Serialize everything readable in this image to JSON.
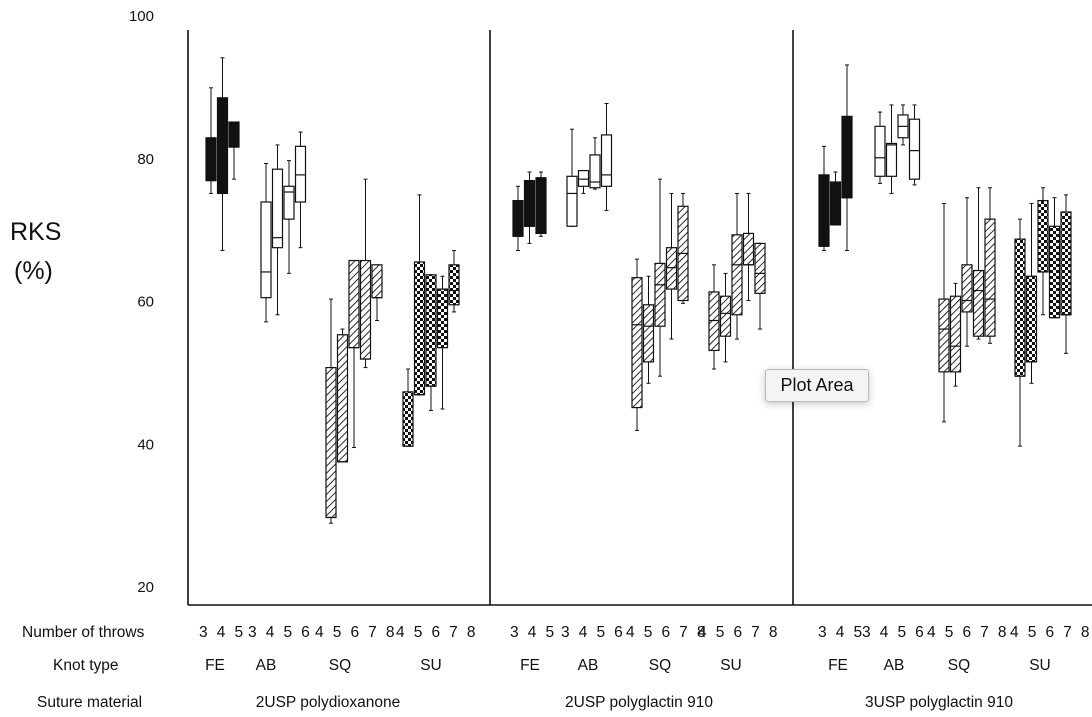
{
  "chart_data": {
    "type": "box",
    "ylabel_line1": "RKS",
    "ylabel_line2": "(%)",
    "ylim": [
      20,
      100
    ],
    "yticks": [
      20,
      40,
      60,
      80,
      100
    ],
    "row_labels": {
      "throws": "Number of throws",
      "knot": "Knot type",
      "material": "Suture material"
    },
    "panels": [
      {
        "material": "2USP polydioxanone",
        "groups": [
          {
            "knot": "FE",
            "throws_label": "345",
            "pattern": "solid",
            "boxes": [
              {
                "throws": 3,
                "min": 75,
                "q1": 76.8,
                "median": 76.8,
                "q3": 82.8,
                "max": 89.8
              },
              {
                "throws": 4,
                "min": 67,
                "q1": 75,
                "median": 75,
                "q3": 88.4,
                "max": 94
              },
              {
                "throws": 5,
                "min": 77,
                "q1": 81.5,
                "median": 81.5,
                "q3": 85,
                "max": 85
              }
            ]
          },
          {
            "knot": "AB",
            "throws_label": "3456",
            "pattern": "open",
            "boxes": [
              {
                "throws": 3,
                "min": 57,
                "q1": 60.4,
                "median": 64,
                "q3": 73.8,
                "max": 79.2
              },
              {
                "throws": 4,
                "min": 58,
                "q1": 67.4,
                "median": 68.8,
                "q3": 78.4,
                "max": 81.8
              },
              {
                "throws": 5,
                "min": 63.8,
                "q1": 71.4,
                "median": 75.2,
                "q3": 76,
                "max": 79.6
              },
              {
                "throws": 6,
                "min": 67.4,
                "q1": 73.8,
                "median": 77.6,
                "q3": 81.6,
                "max": 83.6
              }
            ]
          },
          {
            "knot": "SQ",
            "throws_label": "45678",
            "pattern": "hatch",
            "boxes": [
              {
                "throws": 4,
                "min": 28.8,
                "q1": 29.6,
                "median": 29.6,
                "q3": 50.6,
                "max": 60.2
              },
              {
                "throws": 5,
                "min": 37.4,
                "q1": 37.4,
                "median": 37.4,
                "q3": 55.2,
                "max": 56
              },
              {
                "throws": 6,
                "min": 39.4,
                "q1": 53.4,
                "median": 53.4,
                "q3": 65.6,
                "max": 65.6
              },
              {
                "throws": 7,
                "min": 50.6,
                "q1": 51.8,
                "median": 51.8,
                "q3": 65.6,
                "max": 77
              },
              {
                "throws": 8,
                "min": 57.2,
                "q1": 60.4,
                "median": 60.4,
                "q3": 65,
                "max": 65
              }
            ]
          },
          {
            "knot": "SU",
            "throws_label": "45678",
            "pattern": "check",
            "boxes": [
              {
                "throws": 4,
                "min": 39.6,
                "q1": 39.6,
                "median": 39.6,
                "q3": 47.2,
                "max": 50.4
              },
              {
                "throws": 5,
                "min": 46.8,
                "q1": 46.8,
                "median": 46.8,
                "q3": 65.4,
                "max": 74.8
              },
              {
                "throws": 6,
                "min": 44.6,
                "q1": 48,
                "median": 48,
                "q3": 63.6,
                "max": 63.6
              },
              {
                "throws": 7,
                "min": 44.8,
                "q1": 53.4,
                "median": 53.4,
                "q3": 61.6,
                "max": 63.4
              },
              {
                "throws": 8,
                "min": 58.4,
                "q1": 59.4,
                "median": 61.4,
                "q3": 65,
                "max": 67
              }
            ]
          }
        ]
      },
      {
        "material": "2USP polyglactin 910",
        "groups": [
          {
            "knot": "FE",
            "throws_label": "345",
            "pattern": "solid",
            "boxes": [
              {
                "throws": 3,
                "min": 67,
                "q1": 69,
                "median": 69,
                "q3": 74,
                "max": 76
              },
              {
                "throws": 4,
                "min": 68,
                "q1": 70.4,
                "median": 70.4,
                "q3": 76.8,
                "max": 78
              },
              {
                "throws": 5,
                "min": 69,
                "q1": 69.4,
                "median": 69.4,
                "q3": 77.2,
                "max": 78
              }
            ]
          },
          {
            "knot": "AB",
            "throws_label": "3456",
            "pattern": "open",
            "boxes": [
              {
                "throws": 3,
                "min": 70.4,
                "q1": 70.4,
                "median": 75,
                "q3": 77.4,
                "max": 84
              },
              {
                "throws": 4,
                "min": 75,
                "q1": 76,
                "median": 77,
                "q3": 78.2,
                "max": 78.2
              },
              {
                "throws": 5,
                "min": 75.6,
                "q1": 75.8,
                "median": 76.6,
                "q3": 80.4,
                "max": 82.8
              },
              {
                "throws": 6,
                "min": 72.6,
                "q1": 76,
                "median": 77.6,
                "q3": 83.2,
                "max": 87.6
              }
            ]
          },
          {
            "knot": "SQ",
            "throws_label": "45678",
            "pattern": "hatch",
            "boxes": [
              {
                "throws": 4,
                "min": 41.8,
                "q1": 45,
                "median": 56.6,
                "q3": 63.2,
                "max": 65.8
              },
              {
                "throws": 5,
                "min": 48.4,
                "q1": 51.4,
                "median": 56.4,
                "q3": 59.4,
                "max": 63.4
              },
              {
                "throws": 6,
                "min": 49.4,
                "q1": 56.4,
                "median": 62.2,
                "q3": 65.2,
                "max": 77
              },
              {
                "throws": 7,
                "min": 54.6,
                "q1": 61.6,
                "median": 64.6,
                "q3": 67.4,
                "max": 75
              },
              {
                "throws": 8,
                "min": 59.6,
                "q1": 60,
                "median": 66.6,
                "q3": 73.2,
                "max": 75
              }
            ]
          },
          {
            "knot": "SU",
            "throws_label": "45678",
            "pattern": "hatch",
            "boxes": [
              {
                "throws": 4,
                "min": 50.4,
                "q1": 53,
                "median": 57.2,
                "q3": 61.2,
                "max": 65
              },
              {
                "throws": 5,
                "min": 51.4,
                "q1": 55,
                "median": 58.2,
                "q3": 60.6,
                "max": 63.8
              },
              {
                "throws": 6,
                "min": 54.6,
                "q1": 58,
                "median": 65,
                "q3": 69.2,
                "max": 75
              },
              {
                "throws": 7,
                "min": 60,
                "q1": 65,
                "median": 65,
                "q3": 69.4,
                "max": 75
              },
              {
                "throws": 8,
                "min": 56,
                "q1": 61,
                "median": 63.8,
                "q3": 68,
                "max": 68
              }
            ]
          }
        ]
      },
      {
        "material": "3USP polyglactin 910",
        "groups": [
          {
            "knot": "FE",
            "throws_label": "345",
            "pattern": "solid",
            "boxes": [
              {
                "throws": 3,
                "min": 67,
                "q1": 67.6,
                "median": 67.6,
                "q3": 77.6,
                "max": 81.6
              },
              {
                "throws": 4,
                "min": 70.6,
                "q1": 70.6,
                "median": 70.6,
                "q3": 76.6,
                "max": 78
              },
              {
                "throws": 5,
                "min": 67,
                "q1": 74.4,
                "median": 74.4,
                "q3": 85.8,
                "max": 93
              }
            ]
          },
          {
            "knot": "AB",
            "throws_label": "3456",
            "pattern": "open",
            "boxes": [
              {
                "throws": 3,
                "min": 76.4,
                "q1": 77.4,
                "median": 80,
                "q3": 84.4,
                "max": 86.4
              },
              {
                "throws": 4,
                "min": 75,
                "q1": 77.4,
                "median": 81.8,
                "q3": 82,
                "max": 87.4
              },
              {
                "throws": 5,
                "min": 81.8,
                "q1": 82.8,
                "median": 84.4,
                "q3": 86,
                "max": 87.4
              },
              {
                "throws": 6,
                "min": 76.2,
                "q1": 77,
                "median": 81,
                "q3": 85.4,
                "max": 87.4
              }
            ]
          },
          {
            "knot": "SQ",
            "throws_label": "45678",
            "pattern": "hatch",
            "boxes": [
              {
                "throws": 4,
                "min": 43,
                "q1": 50,
                "median": 56,
                "q3": 60.2,
                "max": 73.6
              },
              {
                "throws": 5,
                "min": 48,
                "q1": 50,
                "median": 53.6,
                "q3": 60.6,
                "max": 62.4
              },
              {
                "throws": 6,
                "min": 53.6,
                "q1": 58.4,
                "median": 60,
                "q3": 65,
                "max": 74.4
              },
              {
                "throws": 7,
                "min": 54.6,
                "q1": 55,
                "median": 61.4,
                "q3": 64.2,
                "max": 75.8
              },
              {
                "throws": 8,
                "min": 54,
                "q1": 55,
                "median": 60.2,
                "q3": 71.4,
                "max": 75.8
              }
            ]
          },
          {
            "knot": "SU",
            "throws_label": "45678",
            "pattern": "check",
            "boxes": [
              {
                "throws": 4,
                "min": 39.6,
                "q1": 49.4,
                "median": 49.4,
                "q3": 68.6,
                "max": 71.4
              },
              {
                "throws": 5,
                "min": 48.4,
                "q1": 51.4,
                "median": 51.4,
                "q3": 63.4,
                "max": 73.6
              },
              {
                "throws": 6,
                "min": 58,
                "q1": 64,
                "median": 64,
                "q3": 74,
                "max": 75.8
              },
              {
                "throws": 7,
                "min": 57.6,
                "q1": 57.6,
                "median": 57.6,
                "q3": 70.4,
                "max": 74.4
              },
              {
                "throws": 8,
                "min": 52.6,
                "q1": 58,
                "median": 58,
                "q3": 72.4,
                "max": 74.8
              }
            ]
          }
        ]
      }
    ]
  },
  "tooltip": {
    "text": "Plot Area"
  }
}
